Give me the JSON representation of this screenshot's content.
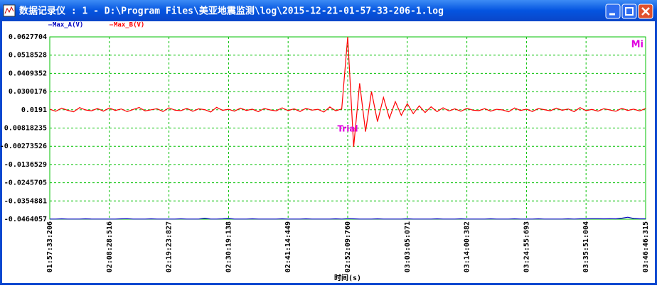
{
  "window": {
    "title": "数据记录仪 : 1 - D:\\Program Files\\美亚地震监测\\log\\2015-12-21-01-57-33-206-1.log"
  },
  "chart_data": {
    "type": "line",
    "x_label": "时间(s)",
    "annotations": [
      "Mi",
      "Trial"
    ],
    "ylim": [
      -0.0464057,
      0.0627704
    ],
    "yticks": [
      0.0627704,
      0.0518528,
      0.0409352,
      0.0300176,
      0.0191,
      0.00818235,
      -0.00273526,
      -0.0136529,
      -0.0245705,
      -0.0354881,
      -0.0464057
    ],
    "grid": true,
    "categories": [
      "01:57:33:206",
      null,
      null,
      null,
      null,
      null,
      null,
      null,
      null,
      null,
      "02:08:28:516",
      null,
      null,
      null,
      null,
      null,
      null,
      null,
      null,
      null,
      "02:19:23:827",
      null,
      null,
      null,
      null,
      null,
      null,
      null,
      null,
      null,
      "02:30:19:138",
      null,
      null,
      null,
      null,
      null,
      null,
      null,
      null,
      null,
      "02:41:14:449",
      null,
      null,
      null,
      null,
      null,
      null,
      null,
      null,
      null,
      "02:52:09:760",
      null,
      null,
      null,
      null,
      null,
      null,
      null,
      null,
      null,
      "03:03:05:071",
      null,
      null,
      null,
      null,
      null,
      null,
      null,
      null,
      null,
      "03:14:00:382",
      null,
      null,
      null,
      null,
      null,
      null,
      null,
      null,
      null,
      "03:24:55:693",
      null,
      null,
      null,
      null,
      null,
      null,
      null,
      null,
      null,
      "03:35:51:004",
      null,
      null,
      null,
      null,
      null,
      null,
      null,
      null,
      null,
      "03:46:46:315"
    ],
    "series": [
      {
        "name": "Max_A(V)",
        "color": "#0000c0",
        "values": [
          -0.0463,
          -0.0463,
          -0.0462,
          -0.0463,
          -0.0463,
          -0.0463,
          -0.0462,
          -0.0463,
          -0.0463,
          -0.0463,
          -0.0463,
          -0.0463,
          -0.0462,
          -0.0461,
          -0.0463,
          -0.0463,
          -0.0463,
          -0.0462,
          -0.0463,
          -0.0463,
          -0.0463,
          -0.0463,
          -0.0462,
          -0.0463,
          -0.0463,
          -0.0463,
          -0.0458,
          -0.0463,
          -0.0463,
          -0.0462,
          -0.046,
          -0.0463,
          -0.0463,
          -0.0463,
          -0.0462,
          -0.0463,
          -0.0463,
          -0.0463,
          -0.0463,
          -0.0462,
          -0.0463,
          -0.0463,
          -0.0463,
          -0.0462,
          -0.0463,
          -0.0463,
          -0.0463,
          -0.0463,
          -0.0462,
          -0.0463,
          -0.0461,
          -0.0462,
          -0.0463,
          -0.0463,
          -0.0463,
          -0.0462,
          -0.0463,
          -0.0463,
          -0.0463,
          -0.0463,
          -0.0462,
          -0.0463,
          -0.0463,
          -0.0463,
          -0.0463,
          -0.0462,
          -0.0463,
          -0.0463,
          -0.0463,
          -0.0462,
          -0.0463,
          -0.0463,
          -0.0463,
          -0.0463,
          -0.0462,
          -0.0463,
          -0.0463,
          -0.0463,
          -0.0462,
          -0.0463,
          -0.0463,
          -0.0463,
          -0.0462,
          -0.0463,
          -0.0463,
          -0.0463,
          -0.0463,
          -0.0462,
          -0.0463,
          -0.0462,
          -0.0462,
          -0.0461,
          -0.0461,
          -0.0462,
          -0.0461,
          -0.0462,
          -0.0458,
          -0.0452,
          -0.046,
          -0.0462,
          -0.0462
        ]
      },
      {
        "name": "Max_B(V)",
        "color": "#ff0000",
        "values": [
          0.0195,
          0.0182,
          0.0201,
          0.0188,
          0.0179,
          0.0204,
          0.019,
          0.0185,
          0.0199,
          0.0183,
          0.0202,
          0.0187,
          0.0196,
          0.018,
          0.0193,
          0.0205,
          0.0184,
          0.0191,
          0.0198,
          0.0181,
          0.0203,
          0.0189,
          0.0186,
          0.02,
          0.0182,
          0.0197,
          0.0192,
          0.0178,
          0.0206,
          0.0188,
          0.0194,
          0.0183,
          0.0201,
          0.0187,
          0.0195,
          0.018,
          0.0199,
          0.019,
          0.0184,
          0.0203,
          0.0186,
          0.0197,
          0.0181,
          0.02,
          0.0189,
          0.0194,
          0.0178,
          0.0208,
          0.0185,
          0.0196,
          0.0627704,
          -0.003,
          0.035,
          0.006,
          0.03,
          0.012,
          0.0265,
          0.014,
          0.024,
          0.0158,
          0.0228,
          0.0168,
          0.0215,
          0.0175,
          0.0209,
          0.018,
          0.0203,
          0.0184,
          0.0197,
          0.0182,
          0.02,
          0.0189,
          0.0186,
          0.0198,
          0.0183,
          0.0194,
          0.019,
          0.0179,
          0.0202,
          0.0187,
          0.0195,
          0.0181,
          0.0199,
          0.0192,
          0.0185,
          0.0201,
          0.0188,
          0.0196,
          0.018,
          0.0204,
          0.0186,
          0.0193,
          0.0183,
          0.0198,
          0.019,
          0.0182,
          0.02,
          0.0187,
          0.0195,
          0.0184,
          0.0199
        ]
      }
    ]
  }
}
